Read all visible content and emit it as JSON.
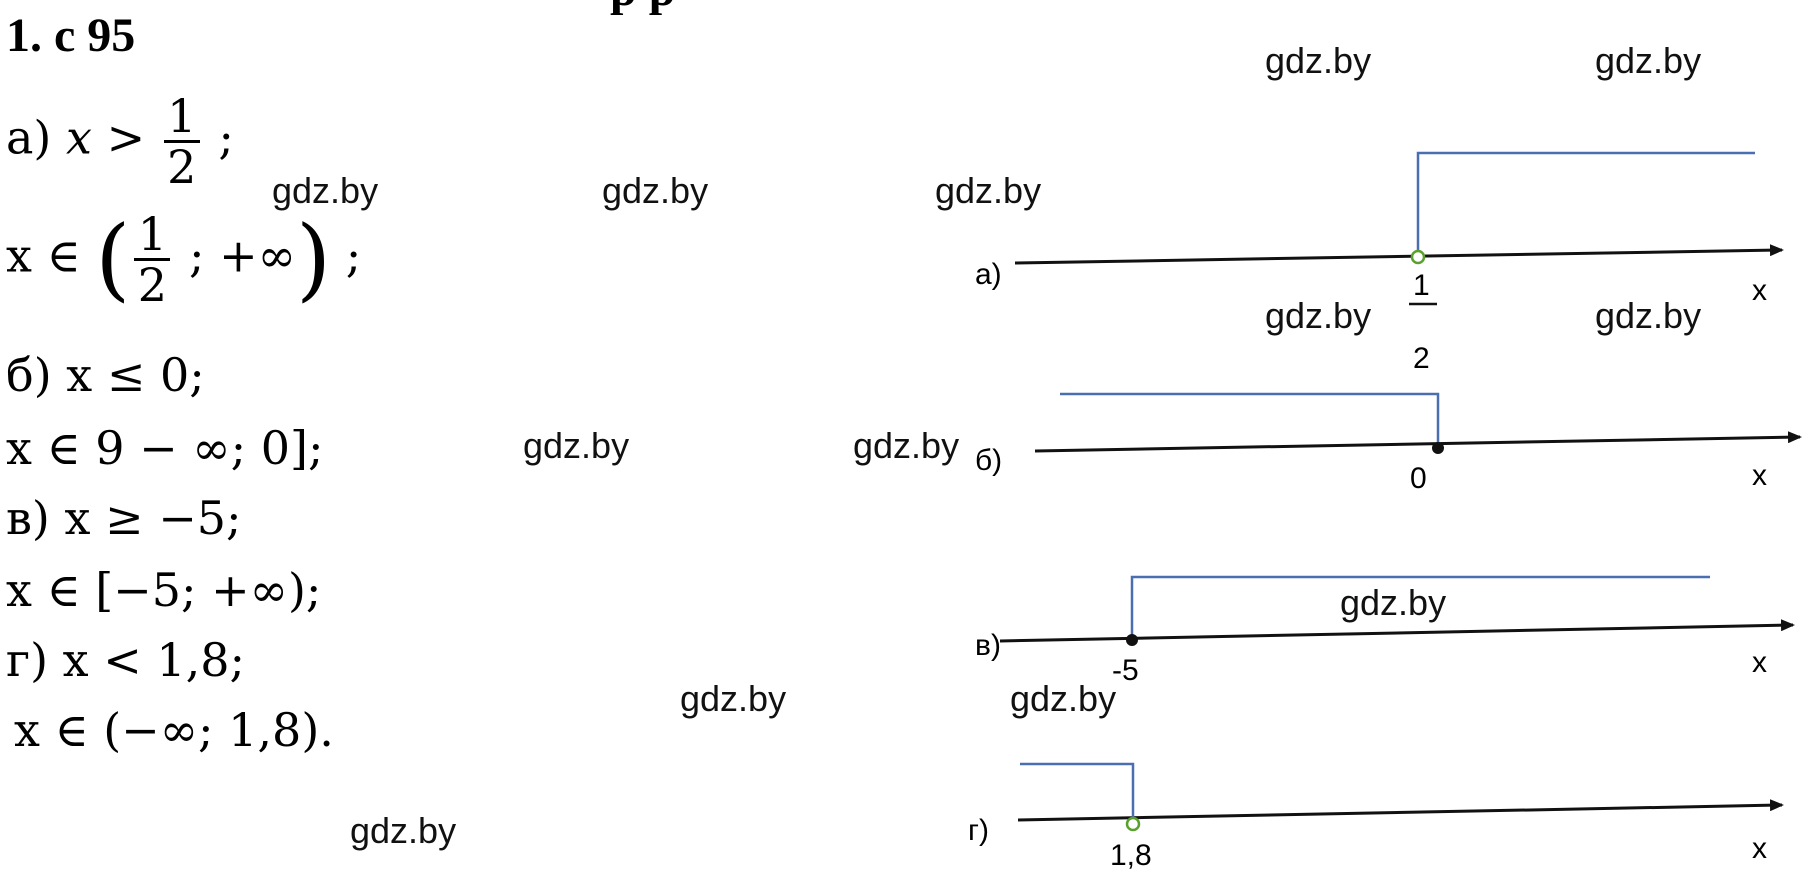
{
  "header": "1. с 95",
  "header_cut": "р р",
  "left": {
    "a": {
      "prefix": "а) ",
      "var": "x",
      "sign": " > ",
      "num": "1",
      "den": "2",
      "end": " ;"
    },
    "a_int": {
      "start": "x ∈ ",
      "num": "1",
      "den": "2",
      "rest": " ; +∞",
      "end": " ;"
    },
    "b": "б) x ≤ 0;",
    "b_int": "x ∈ 9 − ∞; 0];",
    "v": "в) x ≥ −5;",
    "v_int": "x ∈ [−5; +∞);",
    "g": "г) x < 1,8;",
    "g_int": "x ∈ (−∞; 1,8)."
  },
  "watermark": "gdz.by",
  "lines": [
    {
      "label": "а)",
      "point_num": "1",
      "point_den": "2",
      "axis": "x",
      "point_type": "open",
      "direction": "right"
    },
    {
      "label": "б)",
      "point": "0",
      "axis": "x",
      "point_type": "filled",
      "direction": "left"
    },
    {
      "label": "в)",
      "point": "-5",
      "axis": "x",
      "point_type": "filled",
      "direction": "right"
    },
    {
      "label": "г)",
      "point": "1,8",
      "axis": "x",
      "point_type": "open",
      "direction": "left"
    }
  ],
  "colors": {
    "shade": "#4a6fb0",
    "open_point": "#5aa02c",
    "axis": "#111111"
  }
}
